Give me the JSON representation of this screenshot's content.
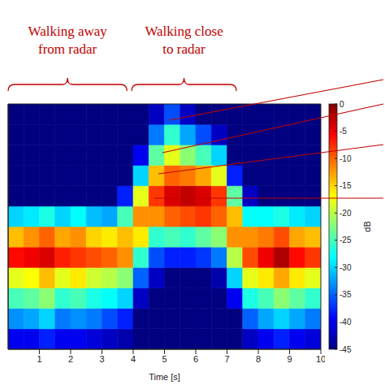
{
  "chart_data": {
    "type": "heatmap",
    "xlabel": "Time [s]",
    "xlim": [
      0,
      10
    ],
    "xticks": [
      1,
      2,
      3,
      4,
      5,
      6,
      7,
      8,
      9,
      10
    ],
    "ylim": [
      0,
      12
    ],
    "tick_labels": "x",
    "x_edges": [
      0,
      0.5,
      1,
      1.5,
      2,
      2.5,
      3,
      3.5,
      4,
      4.5,
      5,
      5.5,
      6,
      6.5,
      7,
      7.5,
      8,
      8.5,
      9,
      9.5,
      10
    ],
    "y_edges": [
      0,
      1,
      2,
      3,
      4,
      5,
      6,
      7,
      8,
      9,
      10,
      11,
      12
    ],
    "cells": [
      [
        -40,
        -40,
        -38,
        -40,
        -40,
        -41,
        -42,
        -43,
        -45,
        -45,
        -45,
        -45,
        -45,
        -45,
        -45,
        -42,
        -40,
        -38,
        -40,
        -41
      ],
      [
        -33,
        -32,
        -30,
        -34,
        -33,
        -34,
        -36,
        -38,
        -45,
        -45,
        -45,
        -45,
        -45,
        -45,
        -45,
        -35,
        -32,
        -30,
        -32,
        -34
      ],
      [
        -25,
        -24,
        -22,
        -26,
        -25,
        -27,
        -28,
        -30,
        -42,
        -45,
        -45,
        -45,
        -45,
        -45,
        -40,
        -27,
        -25,
        -22,
        -24,
        -26
      ],
      [
        -18,
        -17,
        -14,
        -18,
        -16,
        -19,
        -20,
        -22,
        -35,
        -42,
        -45,
        -45,
        -45,
        -43,
        -30,
        -18,
        -16,
        -13,
        -16,
        -18
      ],
      [
        -6,
        -5,
        -4,
        -7,
        -8,
        -9,
        -10,
        -12,
        -26,
        -36,
        -38,
        -38,
        -37,
        -34,
        -20,
        -9,
        -5,
        -2,
        -6,
        -8
      ],
      [
        -14,
        -12,
        -10,
        -13,
        -12,
        -15,
        -16,
        -14,
        -16,
        -26,
        -25,
        -26,
        -24,
        -22,
        -12,
        -12,
        -11,
        -9,
        -13,
        -14
      ],
      [
        -30,
        -29,
        -27,
        -30,
        -28,
        -31,
        -32,
        -25,
        -12,
        -12,
        -10,
        -9,
        -8,
        -10,
        -14,
        -28,
        -28,
        -27,
        -29,
        -30
      ],
      [
        -45,
        -45,
        -45,
        -45,
        -45,
        -45,
        -45,
        -38,
        -18,
        -8,
        -4,
        -3,
        -4,
        -8,
        -24,
        -42,
        -45,
        -45,
        -45,
        -45
      ],
      [
        -45,
        -45,
        -45,
        -45,
        -45,
        -45,
        -45,
        -45,
        -30,
        -14,
        -10,
        -11,
        -13,
        -18,
        -38,
        -45,
        -45,
        -45,
        -45,
        -45
      ],
      [
        -45,
        -45,
        -45,
        -45,
        -45,
        -45,
        -45,
        -45,
        -40,
        -24,
        -18,
        -22,
        -25,
        -30,
        -45,
        -45,
        -45,
        -45,
        -45,
        -45
      ],
      [
        -45,
        -45,
        -45,
        -45,
        -45,
        -45,
        -45,
        -45,
        -45,
        -34,
        -26,
        -32,
        -36,
        -42,
        -45,
        -45,
        -45,
        -45,
        -45,
        -45
      ],
      [
        -45,
        -45,
        -45,
        -45,
        -45,
        -45,
        -45,
        -45,
        -45,
        -42,
        -36,
        -42,
        -45,
        -45,
        -45,
        -45,
        -45,
        -45,
        -45,
        -45
      ]
    ],
    "colorbar": {
      "label": "dB",
      "range": [
        -45,
        0
      ],
      "ticks": [
        0,
        -5,
        -10,
        -15,
        -20,
        -25,
        -30,
        -35,
        -40,
        -45
      ]
    },
    "annotations": [
      {
        "text": "Walking away from radar",
        "span": [
          0,
          3.8
        ]
      },
      {
        "text": "Walking close to radar",
        "span": [
          3.95,
          7.3
        ]
      }
    ]
  }
}
